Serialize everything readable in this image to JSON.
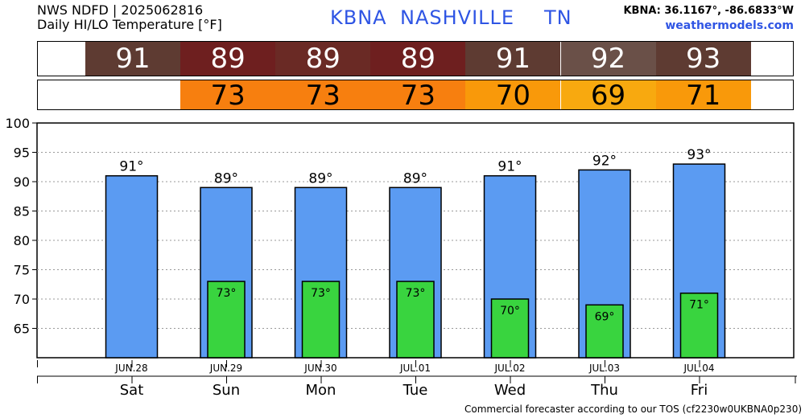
{
  "header": {
    "title_line1": "NWS NDFD | 2025062816",
    "title_line2": "Daily HI/LO Temperature [°F]",
    "station_id": "KBNA",
    "station_name": "NASHVILLE",
    "state": "TN",
    "coords": "KBNA: 36.1167°, -86.6833°W",
    "site": "weathermodels.com"
  },
  "footer": "Commercial forecaster according to our TOS (cf2230w0UKBNA0p230)",
  "strip_colors": {
    "hi": [
      "#5e3b32",
      "#6e1f1f",
      "#6a2a25",
      "#6e1f1f",
      "#5e3b32",
      "#6a5048",
      "#5e3b32"
    ],
    "lo": [
      null,
      "#f77f0f",
      "#f77f0f",
      "#f77f0f",
      "#f9990a",
      "#f8a90f",
      "#f9990a"
    ]
  },
  "colors": {
    "hi_bar": "#5b9bf2",
    "lo_bar": "#39d43f",
    "title_blue": "#2f55e4"
  },
  "chart_data": {
    "type": "bar",
    "days": [
      {
        "date": "JUN.28",
        "weekday": "Sat",
        "hi": 91,
        "lo": null
      },
      {
        "date": "JUN.29",
        "weekday": "Sun",
        "hi": 89,
        "lo": 73
      },
      {
        "date": "JUN.30",
        "weekday": "Mon",
        "hi": 89,
        "lo": 73
      },
      {
        "date": "JUL.01",
        "weekday": "Tue",
        "hi": 89,
        "lo": 73
      },
      {
        "date": "JUL.02",
        "weekday": "Wed",
        "hi": 91,
        "lo": 70
      },
      {
        "date": "JUL.03",
        "weekday": "Thu",
        "hi": 92,
        "lo": 69
      },
      {
        "date": "JUL.04",
        "weekday": "Fri",
        "hi": 93,
        "lo": 71
      }
    ],
    "hi_labels": [
      "91°",
      "89°",
      "89°",
      "89°",
      "91°",
      "92°",
      "93°"
    ],
    "lo_labels": [
      "",
      "73°",
      "73°",
      "73°",
      "70°",
      "69°",
      "71°"
    ],
    "hi_strip": [
      "91",
      "89",
      "89",
      "89",
      "91",
      "92",
      "93"
    ],
    "lo_strip": [
      "",
      "73",
      "73",
      "73",
      "70",
      "69",
      "71"
    ],
    "y_ticks": [
      "100",
      "95",
      "90",
      "85",
      "80",
      "75",
      "70",
      "65"
    ],
    "ylim": [
      60,
      100
    ],
    "grid": true
  }
}
